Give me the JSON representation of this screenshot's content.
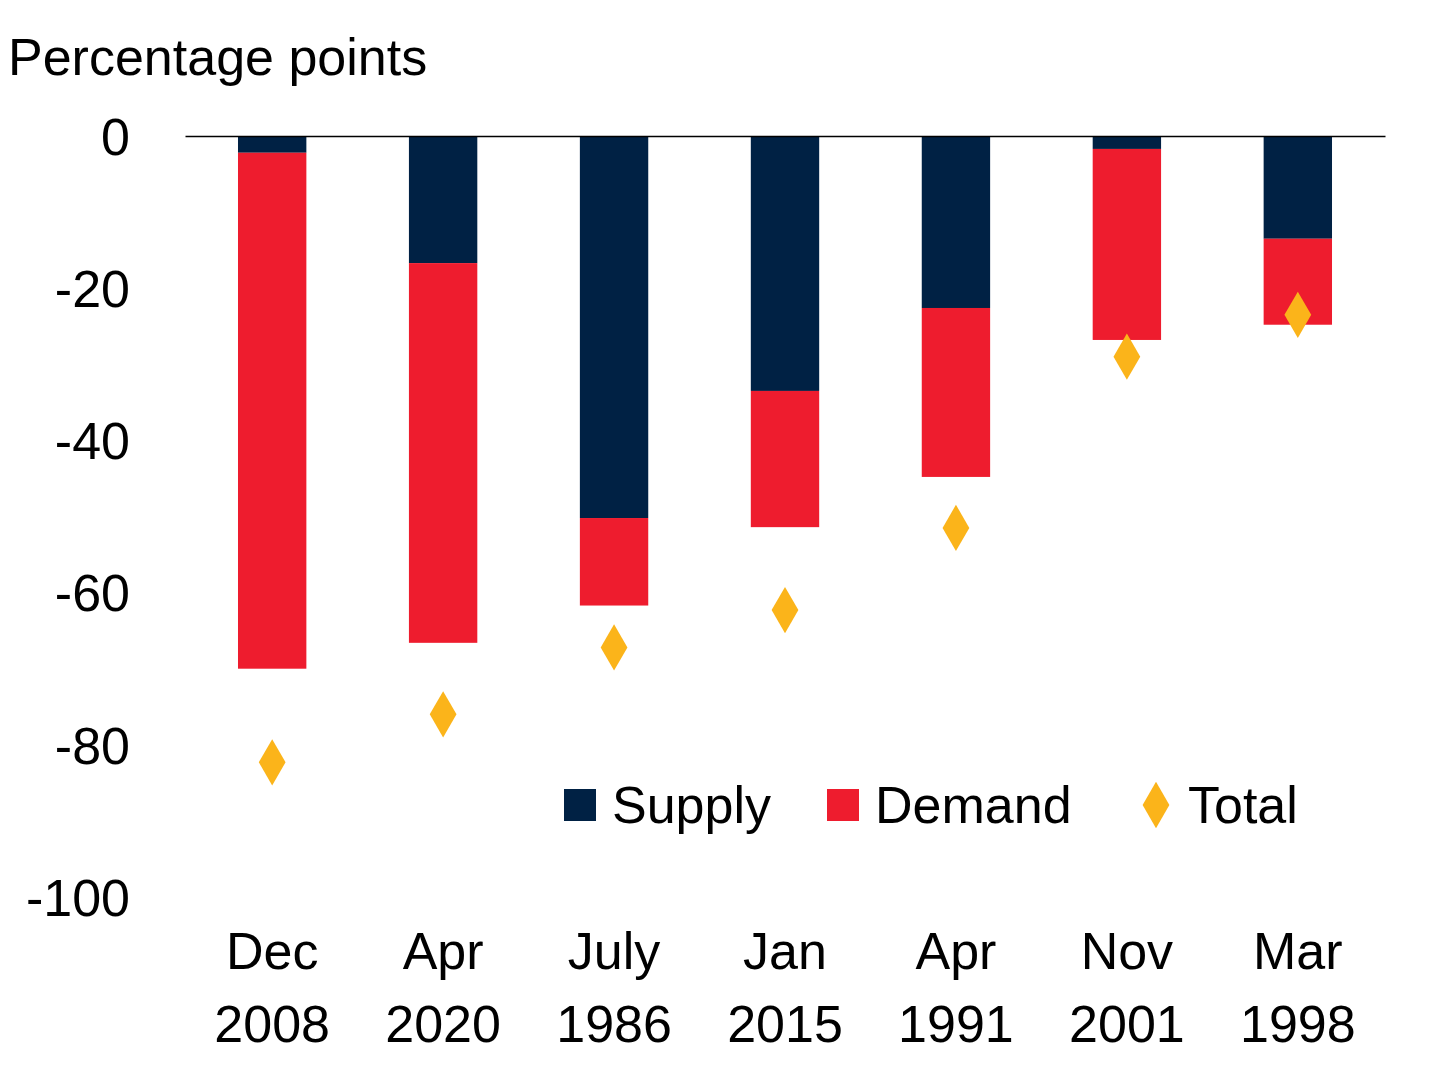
{
  "chart_data": {
    "type": "bar",
    "stacked": true,
    "y_label": "Percentage points",
    "categories": [
      "Dec 2008",
      "Apr 2020",
      "July 1986",
      "Jan 2015",
      "Apr 1991",
      "Nov 2001",
      "Mar 1998"
    ],
    "series": [
      {
        "name": "Supply",
        "type": "bar",
        "color": "#002144",
        "values": [
          -2.2,
          -16.7,
          -50.2,
          -33.5,
          -22.6,
          -1.7,
          -13.5
        ]
      },
      {
        "name": "Demand",
        "type": "bar",
        "color": "#ee1c2e",
        "values": [
          -67.8,
          -49.9,
          -11.5,
          -17.9,
          -22.2,
          -25.1,
          -11.3
        ]
      },
      {
        "name": "Total",
        "type": "scatter",
        "marker": "diamond",
        "color": "#fbb41a",
        "values": [
          -82.3,
          -76.0,
          -67.2,
          -62.3,
          -51.5,
          -29.0,
          -23.5
        ]
      }
    ],
    "ylim": [
      -100,
      0
    ],
    "yticks": [
      0,
      -20,
      -40,
      -60,
      -80,
      -100
    ],
    "legend": "lower right"
  }
}
